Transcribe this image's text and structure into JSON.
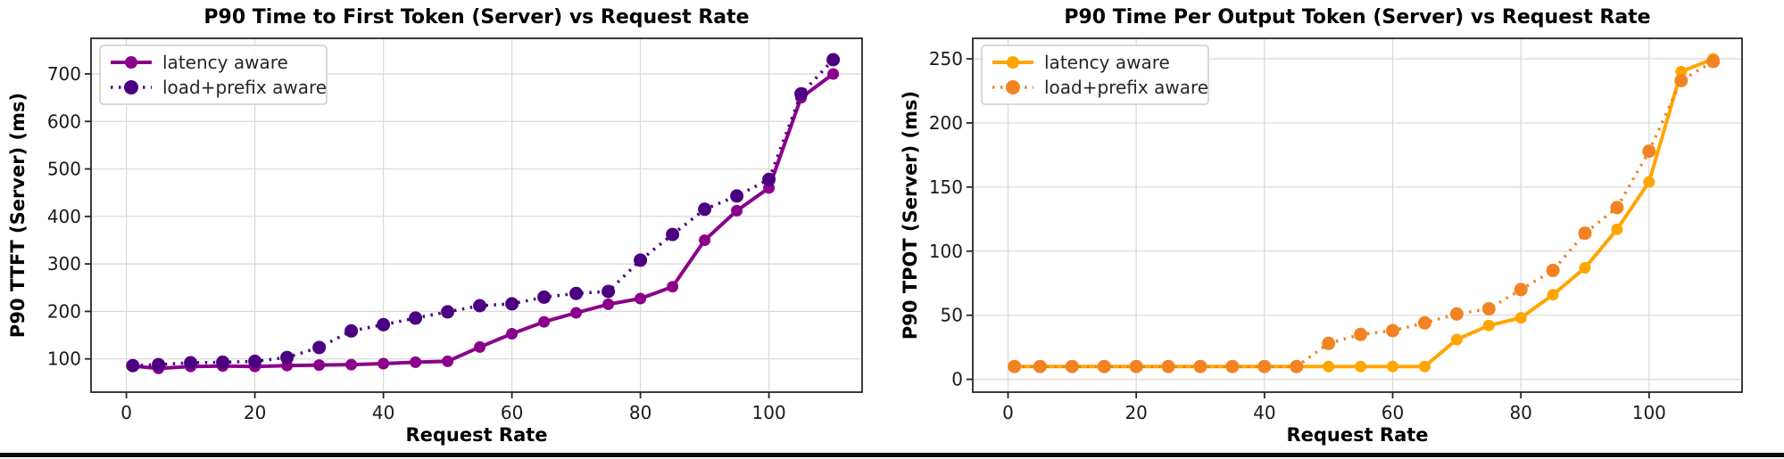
{
  "page": {
    "background": "#ffffff",
    "divider_color": "#0c0c0c"
  },
  "chart_data": [
    {
      "type": "line",
      "title": "P90 Time to First Token (Server) vs Request Rate",
      "xlabel": "Request Rate",
      "ylabel": "P90 TTFT (Server) (ms)",
      "xlim": [
        -5.5,
        114.5
      ],
      "ylim": [
        30,
        775
      ],
      "xticks": [
        0,
        20,
        40,
        60,
        80,
        100
      ],
      "yticks": [
        100,
        200,
        300,
        400,
        500,
        600,
        700
      ],
      "grid": true,
      "legend_position": "upper-left",
      "x": [
        1,
        5,
        10,
        15,
        20,
        25,
        30,
        35,
        40,
        45,
        50,
        55,
        60,
        65,
        70,
        75,
        80,
        85,
        90,
        95,
        100,
        105,
        110
      ],
      "series": [
        {
          "name": "latency aware",
          "style": "solid",
          "color": "#8B008B",
          "values": [
            85,
            80,
            84,
            85,
            84,
            86,
            87,
            88,
            90,
            93,
            95,
            125,
            153,
            178,
            197,
            215,
            227,
            252,
            350,
            412,
            460,
            650,
            700
          ]
        },
        {
          "name": "load+prefix aware",
          "style": "dotted",
          "color": "#4B0082",
          "values": [
            86,
            88,
            92,
            93,
            95,
            103,
            124,
            159,
            172,
            186,
            199,
            212,
            216,
            230,
            238,
            242,
            308,
            362,
            415,
            443,
            478,
            658,
            730
          ]
        }
      ]
    },
    {
      "type": "line",
      "title": "P90 Time Per Output Token (Server) vs Request Rate",
      "xlabel": "Request Rate",
      "ylabel": "P90 TPOT (Server) (ms)",
      "xlim": [
        -5.5,
        114.5
      ],
      "ylim": [
        -10,
        266
      ],
      "xticks": [
        0,
        20,
        40,
        60,
        80,
        100
      ],
      "yticks": [
        0,
        50,
        100,
        150,
        200,
        250
      ],
      "grid": true,
      "legend_position": "upper-left",
      "x": [
        1,
        5,
        10,
        15,
        20,
        25,
        30,
        35,
        40,
        45,
        50,
        55,
        60,
        65,
        70,
        75,
        80,
        85,
        90,
        95,
        100,
        105,
        110
      ],
      "series": [
        {
          "name": "latency aware",
          "style": "solid",
          "color": "#FFA500",
          "values": [
            10,
            10,
            10,
            10,
            10,
            10,
            10,
            10,
            10,
            10,
            10,
            10,
            10,
            10,
            31,
            42,
            48,
            66,
            87,
            117,
            154,
            240,
            250
          ]
        },
        {
          "name": "load+prefix aware",
          "style": "dotted",
          "color": "#F28322",
          "values": [
            10,
            10,
            10,
            10,
            10,
            10,
            10,
            10,
            10,
            10,
            28,
            35,
            38,
            44,
            51,
            55,
            70,
            85,
            114,
            134,
            178,
            233,
            248
          ]
        }
      ]
    }
  ]
}
